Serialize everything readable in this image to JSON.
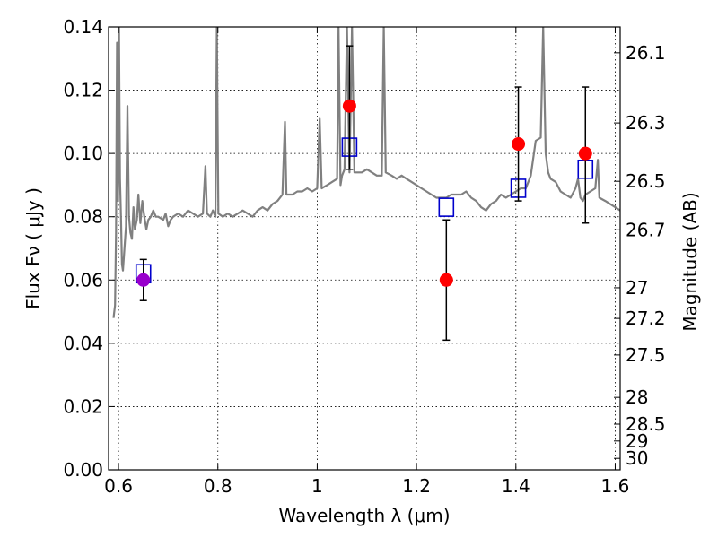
{
  "chart_data": {
    "type": "scatter",
    "xlabel": "Wavelength  λ (μm)",
    "ylabel": "Flux  Fν  ( μJy )",
    "ylabel_right": "Magnitude (AB)",
    "xlim": [
      0.58,
      1.61
    ],
    "ylim": [
      0.0,
      0.14
    ],
    "grid": true,
    "x_ticks": [
      0.6,
      0.8,
      1.0,
      1.2,
      1.4,
      1.6
    ],
    "x_tick_labels": [
      "0.6",
      "0.8",
      "1",
      "1.2",
      "1.4",
      "1.6"
    ],
    "y_ticks": [
      0.0,
      0.02,
      0.04,
      0.06,
      0.08,
      0.1,
      0.12,
      0.14
    ],
    "y_tick_labels": [
      "0.00",
      "0.02",
      "0.04",
      "0.06",
      "0.08",
      "0.10",
      "0.12",
      "0.14"
    ],
    "right_ticks": [
      {
        "label": "26.1",
        "value": 26.1
      },
      {
        "label": "26.3",
        "value": 26.3
      },
      {
        "label": "26.5",
        "value": 26.5
      },
      {
        "label": "26.7",
        "value": 26.7
      },
      {
        "label": "27",
        "value": 27.0
      },
      {
        "label": "27.2",
        "value": 27.2
      },
      {
        "label": "27.5",
        "value": 27.5
      },
      {
        "label": "28",
        "value": 28.0
      },
      {
        "label": "28.5",
        "value": 28.5
      },
      {
        "label": "29",
        "value": 29.0
      },
      {
        "label": "30",
        "value": 30.0
      }
    ],
    "colors": {
      "spectrum": "#808080",
      "observed": "#ff0000",
      "observed_first": "#9900cc",
      "model": "#0000cc",
      "errorbar": "#000000"
    },
    "series": [
      {
        "kind": "line",
        "points": [
          [
            0.59,
            0.048
          ],
          [
            0.593,
            0.052
          ],
          [
            0.595,
            0.075
          ],
          [
            0.597,
            0.135
          ],
          [
            0.599,
            0.085
          ],
          [
            0.601,
            0.14
          ],
          [
            0.603,
            0.092
          ],
          [
            0.605,
            0.08
          ],
          [
            0.607,
            0.065
          ],
          [
            0.609,
            0.063
          ],
          [
            0.612,
            0.07
          ],
          [
            0.615,
            0.077
          ],
          [
            0.618,
            0.115
          ],
          [
            0.621,
            0.08
          ],
          [
            0.624,
            0.075
          ],
          [
            0.627,
            0.073
          ],
          [
            0.63,
            0.083
          ],
          [
            0.633,
            0.076
          ],
          [
            0.637,
            0.079
          ],
          [
            0.64,
            0.087
          ],
          [
            0.644,
            0.078
          ],
          [
            0.648,
            0.085
          ],
          [
            0.652,
            0.08
          ],
          [
            0.656,
            0.076
          ],
          [
            0.66,
            0.079
          ],
          [
            0.665,
            0.08
          ],
          [
            0.67,
            0.082
          ],
          [
            0.675,
            0.08
          ],
          [
            0.68,
            0.08
          ],
          [
            0.69,
            0.079
          ],
          [
            0.695,
            0.081
          ],
          [
            0.7,
            0.077
          ],
          [
            0.705,
            0.079
          ],
          [
            0.71,
            0.08
          ],
          [
            0.72,
            0.081
          ],
          [
            0.73,
            0.08
          ],
          [
            0.74,
            0.082
          ],
          [
            0.75,
            0.081
          ],
          [
            0.76,
            0.08
          ],
          [
            0.77,
            0.081
          ],
          [
            0.775,
            0.096
          ],
          [
            0.778,
            0.081
          ],
          [
            0.785,
            0.08
          ],
          [
            0.79,
            0.082
          ],
          [
            0.795,
            0.08
          ],
          [
            0.798,
            0.14
          ],
          [
            0.801,
            0.081
          ],
          [
            0.81,
            0.08
          ],
          [
            0.82,
            0.081
          ],
          [
            0.83,
            0.08
          ],
          [
            0.84,
            0.081
          ],
          [
            0.85,
            0.082
          ],
          [
            0.86,
            0.081
          ],
          [
            0.87,
            0.08
          ],
          [
            0.88,
            0.082
          ],
          [
            0.89,
            0.083
          ],
          [
            0.9,
            0.082
          ],
          [
            0.91,
            0.084
          ],
          [
            0.92,
            0.085
          ],
          [
            0.93,
            0.087
          ],
          [
            0.935,
            0.11
          ],
          [
            0.938,
            0.087
          ],
          [
            0.95,
            0.087
          ],
          [
            0.96,
            0.088
          ],
          [
            0.97,
            0.088
          ],
          [
            0.98,
            0.089
          ],
          [
            0.99,
            0.088
          ],
          [
            1.0,
            0.089
          ],
          [
            1.005,
            0.111
          ],
          [
            1.009,
            0.089
          ],
          [
            1.02,
            0.09
          ],
          [
            1.03,
            0.091
          ],
          [
            1.04,
            0.092
          ],
          [
            1.043,
            0.14
          ],
          [
            1.047,
            0.09
          ],
          [
            1.05,
            0.093
          ],
          [
            1.055,
            0.095
          ],
          [
            1.06,
            0.14
          ],
          [
            1.065,
            0.094
          ],
          [
            1.07,
            0.14
          ],
          [
            1.075,
            0.094
          ],
          [
            1.08,
            0.094
          ],
          [
            1.09,
            0.094
          ],
          [
            1.1,
            0.095
          ],
          [
            1.11,
            0.094
          ],
          [
            1.12,
            0.093
          ],
          [
            1.13,
            0.093
          ],
          [
            1.134,
            0.14
          ],
          [
            1.138,
            0.094
          ],
          [
            1.15,
            0.093
          ],
          [
            1.16,
            0.092
          ],
          [
            1.17,
            0.093
          ],
          [
            1.18,
            0.092
          ],
          [
            1.19,
            0.091
          ],
          [
            1.2,
            0.09
          ],
          [
            1.21,
            0.089
          ],
          [
            1.22,
            0.088
          ],
          [
            1.23,
            0.087
          ],
          [
            1.24,
            0.086
          ],
          [
            1.25,
            0.086
          ],
          [
            1.26,
            0.086
          ],
          [
            1.27,
            0.087
          ],
          [
            1.28,
            0.087
          ],
          [
            1.29,
            0.087
          ],
          [
            1.3,
            0.088
          ],
          [
            1.31,
            0.086
          ],
          [
            1.32,
            0.085
          ],
          [
            1.33,
            0.083
          ],
          [
            1.34,
            0.082
          ],
          [
            1.35,
            0.084
          ],
          [
            1.36,
            0.085
          ],
          [
            1.37,
            0.087
          ],
          [
            1.38,
            0.086
          ],
          [
            1.39,
            0.087
          ],
          [
            1.4,
            0.088
          ],
          [
            1.41,
            0.089
          ],
          [
            1.42,
            0.089
          ],
          [
            1.43,
            0.093
          ],
          [
            1.44,
            0.104
          ],
          [
            1.45,
            0.105
          ],
          [
            1.455,
            0.14
          ],
          [
            1.46,
            0.1
          ],
          [
            1.465,
            0.094
          ],
          [
            1.47,
            0.092
          ],
          [
            1.48,
            0.091
          ],
          [
            1.49,
            0.088
          ],
          [
            1.5,
            0.087
          ],
          [
            1.51,
            0.086
          ],
          [
            1.52,
            0.089
          ],
          [
            1.525,
            0.092
          ],
          [
            1.53,
            0.086
          ],
          [
            1.535,
            0.085
          ],
          [
            1.54,
            0.087
          ],
          [
            1.55,
            0.088
          ],
          [
            1.56,
            0.089
          ],
          [
            1.565,
            0.098
          ],
          [
            1.568,
            0.086
          ],
          [
            1.58,
            0.085
          ],
          [
            1.59,
            0.084
          ],
          [
            1.6,
            0.083
          ],
          [
            1.61,
            0.082
          ]
        ]
      },
      {
        "kind": "observed",
        "points": [
          {
            "x": 0.65,
            "y": 0.06,
            "err_lo": 0.0535,
            "err_hi": 0.0665
          },
          {
            "x": 1.065,
            "y": 0.115,
            "err_lo": 0.095,
            "err_hi": 0.134
          },
          {
            "x": 1.26,
            "y": 0.06,
            "err_lo": 0.041,
            "err_hi": 0.079
          },
          {
            "x": 1.405,
            "y": 0.103,
            "err_lo": 0.085,
            "err_hi": 0.121
          },
          {
            "x": 1.54,
            "y": 0.1,
            "err_lo": 0.078,
            "err_hi": 0.121
          }
        ]
      },
      {
        "kind": "model",
        "points": [
          {
            "x": 0.65,
            "y": 0.062
          },
          {
            "x": 1.065,
            "y": 0.102
          },
          {
            "x": 1.26,
            "y": 0.083
          },
          {
            "x": 1.405,
            "y": 0.089
          },
          {
            "x": 1.54,
            "y": 0.095
          }
        ]
      }
    ]
  }
}
